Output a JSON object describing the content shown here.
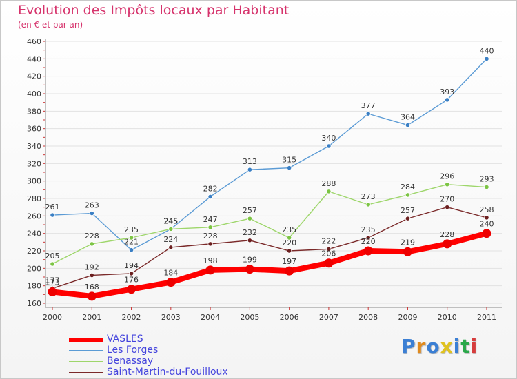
{
  "title": "Evolution des Impôts locaux par Habitant",
  "subtitle": "(en € et par an)",
  "logo_text": "Proxiti",
  "logo_colors": [
    "#3b7fd4",
    "#e08a1e",
    "#3b7fd4",
    "#e0c21e",
    "#3b7fd4",
    "#2aa84a",
    "#d63c3c"
  ],
  "chart_data": {
    "type": "line",
    "x": [
      "2000",
      "2001",
      "2002",
      "2003",
      "2004",
      "2005",
      "2006",
      "2007",
      "2008",
      "2009",
      "2010",
      "2011"
    ],
    "ylim": [
      160,
      460
    ],
    "yticks": [
      160,
      180,
      200,
      220,
      240,
      260,
      280,
      300,
      320,
      340,
      360,
      380,
      400,
      420,
      440,
      460
    ],
    "grid": "horizontal",
    "legend_position": "bottom-left",
    "series": [
      {
        "name": "Les Forges",
        "color": "#5b9bd5",
        "marker": "#3a7fc4",
        "values": [
          261,
          263,
          221,
          245,
          282,
          313,
          315,
          340,
          377,
          364,
          393,
          440
        ]
      },
      {
        "name": "Benassay",
        "color": "#9ed66b",
        "marker": "#7cc444",
        "values": [
          205,
          228,
          235,
          245,
          247,
          257,
          235,
          288,
          273,
          284,
          296,
          293
        ]
      },
      {
        "name": "Saint-Martin-du-Fouilloux",
        "color": "#7b2a2a",
        "marker": "#6b1f1f",
        "values": [
          177,
          192,
          194,
          224,
          228,
          232,
          220,
          222,
          235,
          257,
          270,
          258
        ]
      },
      {
        "name": "VASLES",
        "color": "#ff0000",
        "marker": "#ee0000",
        "values": [
          173,
          168,
          176,
          184,
          198,
          199,
          197,
          206,
          220,
          219,
          228,
          240
        ]
      }
    ],
    "legend_order": [
      "VASLES",
      "Les Forges",
      "Benassay",
      "Saint-Martin-du-Fouilloux"
    ]
  }
}
